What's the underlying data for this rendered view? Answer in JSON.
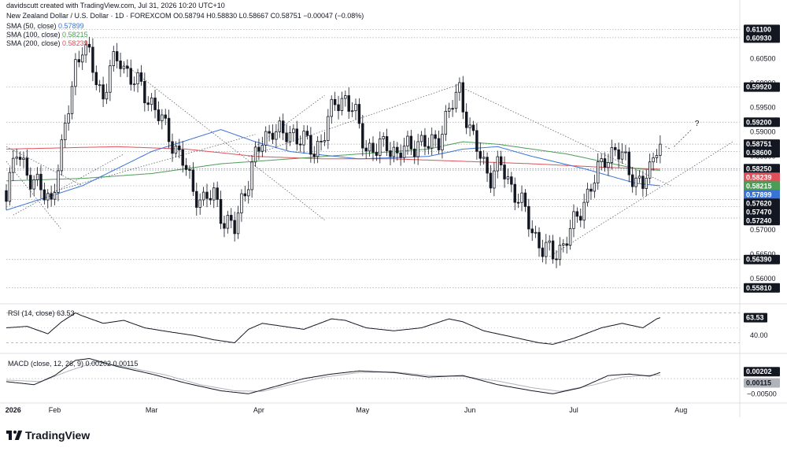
{
  "header": {
    "credit": "davidscutt created with TradingView.com, Jul 31, 2026 10:20 UTC+10",
    "symbol": "New Zealand Dollar / U.S. Dollar · 1D · FOREXCOM",
    "ohlc": "O0.58794 H0.58830 L0.58667 C0.58751 −0.00047 (−0.08%)",
    "sma50_label": "SMA (50, close)",
    "sma50_value": "0.57899",
    "sma100_label": "SMA (100, close)",
    "sma100_value": "0.58215",
    "sma200_label": "SMA (200, close)",
    "sma200_value": "0.58239"
  },
  "colors": {
    "up": "#131722",
    "down": "#131722",
    "sma50": "#3a73d6",
    "sma100": "#4c9b56",
    "sma200": "#e0505b",
    "grid": "#a0a4ab",
    "text": "#131722"
  },
  "logo": {
    "text": "TradingView",
    "icon": "tradingview-logo-icon"
  },
  "annotation": {
    "question": "?"
  },
  "chart_data": [
    {
      "type": "candlestick",
      "title": "New Zealand Dollar / U.S. Dollar",
      "interval": "1D",
      "y_range": [
        0.555,
        0.6125
      ],
      "y_ticks": [
        0.56,
        0.565,
        0.57,
        0.575,
        0.58,
        0.585,
        0.59,
        0.595,
        0.6,
        0.605
      ],
      "x_months": [
        {
          "label": "2026",
          "day": 20
        },
        {
          "label": "Feb",
          "day": 32
        },
        {
          "label": "Mar",
          "day": 60
        },
        {
          "label": "Apr",
          "day": 91
        },
        {
          "label": "May",
          "day": 121
        },
        {
          "label": "Jun",
          "day": 152
        },
        {
          "label": "Jul",
          "day": 182
        },
        {
          "label": "Aug",
          "day": 213
        }
      ],
      "x_day_range": [
        18,
        230
      ],
      "ohlc_anchors": [
        [
          18,
          0.578
        ],
        [
          21,
          0.5855
        ],
        [
          24,
          0.582
        ],
        [
          27,
          0.579
        ],
        [
          29,
          0.577
        ],
        [
          31,
          0.576
        ],
        [
          32,
          0.58
        ],
        [
          34,
          0.586
        ],
        [
          36,
          0.595
        ],
        [
          38,
          0.604
        ],
        [
          40,
          0.6075
        ],
        [
          42,
          0.605
        ],
        [
          44,
          0.601
        ],
        [
          46,
          0.597
        ],
        [
          48,
          0.603
        ],
        [
          51,
          0.605
        ],
        [
          54,
          0.601
        ],
        [
          57,
          0.599
        ],
        [
          60,
          0.596
        ],
        [
          63,
          0.592
        ],
        [
          66,
          0.588
        ],
        [
          69,
          0.584
        ],
        [
          72,
          0.578
        ],
        [
          75,
          0.576
        ],
        [
          78,
          0.577
        ],
        [
          81,
          0.572
        ],
        [
          84,
          0.57
        ],
        [
          86,
          0.576
        ],
        [
          89,
          0.583
        ],
        [
          92,
          0.588
        ],
        [
          95,
          0.591
        ],
        [
          98,
          0.589
        ],
        [
          101,
          0.59
        ],
        [
          104,
          0.588
        ],
        [
          107,
          0.586
        ],
        [
          110,
          0.59
        ],
        [
          113,
          0.596
        ],
        [
          116,
          0.597
        ],
        [
          119,
          0.593
        ],
        [
          122,
          0.587
        ],
        [
          125,
          0.586
        ],
        [
          128,
          0.588
        ],
        [
          131,
          0.585
        ],
        [
          134,
          0.587
        ],
        [
          137,
          0.588
        ],
        [
          140,
          0.587
        ],
        [
          143,
          0.589
        ],
        [
          146,
          0.594
        ],
        [
          149,
          0.599
        ],
        [
          152,
          0.59
        ],
        [
          155,
          0.585
        ],
        [
          158,
          0.581
        ],
        [
          161,
          0.583
        ],
        [
          164,
          0.579
        ],
        [
          167,
          0.575
        ],
        [
          170,
          0.57
        ],
        [
          173,
          0.566
        ],
        [
          176,
          0.565
        ],
        [
          179,
          0.567
        ],
        [
          182,
          0.571
        ],
        [
          185,
          0.576
        ],
        [
          188,
          0.58
        ],
        [
          191,
          0.585
        ],
        [
          194,
          0.586
        ],
        [
          197,
          0.584
        ],
        [
          200,
          0.58
        ],
        [
          202,
          0.579
        ],
        [
          204,
          0.582
        ],
        [
          206,
          0.588
        ],
        [
          207,
          0.58751
        ]
      ],
      "levels": [
        0.611,
        0.6093,
        0.5992,
        0.592,
        0.58751,
        0.586,
        0.5825,
        0.58239,
        0.58215,
        0.57899,
        0.5762,
        0.5747,
        0.5724,
        0.5639,
        0.5581
      ],
      "price_labels": [
        {
          "text": "0.61100",
          "value": 0.611,
          "style": "dark"
        },
        {
          "text": "0.60930",
          "value": 0.6093,
          "style": "dark"
        },
        {
          "text": "0.59920",
          "value": 0.5992,
          "style": "dark"
        },
        {
          "text": "0.59200",
          "value": 0.592,
          "style": "dark"
        },
        {
          "text": "0.58751",
          "value": 0.58751,
          "style": "dark"
        },
        {
          "text": "0.58600",
          "value": 0.586,
          "style": "dark"
        },
        {
          "text": "0.58250",
          "value": 0.5825,
          "style": "dark"
        },
        {
          "text": "0.58239",
          "value": 0.58239,
          "style": "red"
        },
        {
          "text": "0.58215",
          "value": 0.58215,
          "style": "green"
        },
        {
          "text": "0.57899",
          "value": 0.57899,
          "style": "blue"
        },
        {
          "text": "0.57620",
          "value": 0.5762,
          "style": "dark"
        },
        {
          "text": "0.57470",
          "value": 0.5747,
          "style": "dark"
        },
        {
          "text": "0.57240",
          "value": 0.5724,
          "style": "dark"
        },
        {
          "text": "0.56390",
          "value": 0.5639,
          "style": "dark"
        },
        {
          "text": "0.55810",
          "value": 0.5581,
          "style": "dark"
        }
      ],
      "sma50_anchors": [
        [
          18,
          0.574
        ],
        [
          40,
          0.579
        ],
        [
          60,
          0.586
        ],
        [
          80,
          0.5905
        ],
        [
          90,
          0.588
        ],
        [
          100,
          0.586
        ],
        [
          120,
          0.5845
        ],
        [
          140,
          0.585
        ],
        [
          150,
          0.5865
        ],
        [
          160,
          0.587
        ],
        [
          170,
          0.585
        ],
        [
          185,
          0.5825
        ],
        [
          200,
          0.5795
        ],
        [
          207,
          0.57899
        ]
      ],
      "sma100_anchors": [
        [
          18,
          0.58
        ],
        [
          40,
          0.5805
        ],
        [
          60,
          0.5815
        ],
        [
          80,
          0.5835
        ],
        [
          100,
          0.5845
        ],
        [
          120,
          0.5855
        ],
        [
          140,
          0.5865
        ],
        [
          150,
          0.588
        ],
        [
          160,
          0.5875
        ],
        [
          180,
          0.5855
        ],
        [
          200,
          0.5825
        ],
        [
          207,
          0.58215
        ]
      ],
      "sma200_anchors": [
        [
          18,
          0.5865
        ],
        [
          50,
          0.587
        ],
        [
          70,
          0.5865
        ],
        [
          90,
          0.585
        ],
        [
          110,
          0.5845
        ],
        [
          130,
          0.5845
        ],
        [
          150,
          0.584
        ],
        [
          170,
          0.5835
        ],
        [
          190,
          0.5828
        ],
        [
          207,
          0.58239
        ]
      ]
    },
    {
      "type": "line",
      "title": "RSI (14, close)",
      "value_label": "63.53",
      "y_range": [
        20,
        80
      ],
      "y_ticks": [
        40
      ],
      "bands": [
        70,
        30
      ],
      "anchors": [
        [
          18,
          50
        ],
        [
          24,
          52
        ],
        [
          30,
          42
        ],
        [
          34,
          58
        ],
        [
          38,
          70
        ],
        [
          40,
          66
        ],
        [
          46,
          56
        ],
        [
          52,
          60
        ],
        [
          58,
          50
        ],
        [
          66,
          44
        ],
        [
          72,
          40
        ],
        [
          78,
          34
        ],
        [
          84,
          30
        ],
        [
          88,
          48
        ],
        [
          92,
          56
        ],
        [
          98,
          52
        ],
        [
          104,
          48
        ],
        [
          112,
          62
        ],
        [
          116,
          60
        ],
        [
          122,
          50
        ],
        [
          130,
          46
        ],
        [
          138,
          50
        ],
        [
          146,
          62
        ],
        [
          150,
          58
        ],
        [
          156,
          46
        ],
        [
          164,
          38
        ],
        [
          172,
          30
        ],
        [
          176,
          28
        ],
        [
          182,
          36
        ],
        [
          190,
          50
        ],
        [
          196,
          56
        ],
        [
          202,
          50
        ],
        [
          206,
          62
        ],
        [
          207,
          63.53
        ]
      ]
    },
    {
      "type": "line",
      "title": "MACD (close, 12, 26, 9)",
      "macd_label": "0.00202",
      "signal_label": "0.00115",
      "y_range": [
        -0.0075,
        0.0075
      ],
      "y_ticks": [
        -0.005
      ],
      "macd_anchors": [
        [
          18,
          -0.001
        ],
        [
          26,
          -0.002
        ],
        [
          32,
          0.001
        ],
        [
          38,
          0.006
        ],
        [
          42,
          0.0066
        ],
        [
          50,
          0.004
        ],
        [
          60,
          0.0015
        ],
        [
          70,
          -0.0015
        ],
        [
          80,
          -0.004
        ],
        [
          88,
          -0.005
        ],
        [
          96,
          -0.0025
        ],
        [
          104,
          0.0
        ],
        [
          112,
          0.0015
        ],
        [
          120,
          0.0025
        ],
        [
          130,
          0.002
        ],
        [
          140,
          0.0005
        ],
        [
          150,
          0.001
        ],
        [
          160,
          -0.002
        ],
        [
          170,
          -0.004
        ],
        [
          176,
          -0.005
        ],
        [
          184,
          -0.003
        ],
        [
          192,
          0.001
        ],
        [
          198,
          0.0015
        ],
        [
          204,
          0.0008
        ],
        [
          207,
          0.00202
        ]
      ],
      "signal_anchors": [
        [
          18,
          -0.0005
        ],
        [
          28,
          -0.001
        ],
        [
          36,
          0.0025
        ],
        [
          44,
          0.0055
        ],
        [
          54,
          0.0035
        ],
        [
          64,
          0.0012
        ],
        [
          74,
          -0.002
        ],
        [
          84,
          -0.004
        ],
        [
          92,
          -0.0042
        ],
        [
          100,
          -0.002
        ],
        [
          110,
          0.0005
        ],
        [
          120,
          0.002
        ],
        [
          130,
          0.0022
        ],
        [
          140,
          0.001
        ],
        [
          150,
          0.0007
        ],
        [
          160,
          -0.0008
        ],
        [
          170,
          -0.003
        ],
        [
          178,
          -0.0042
        ],
        [
          188,
          -0.002
        ],
        [
          196,
          0.0005
        ],
        [
          202,
          0.001
        ],
        [
          207,
          0.00115
        ]
      ]
    }
  ]
}
